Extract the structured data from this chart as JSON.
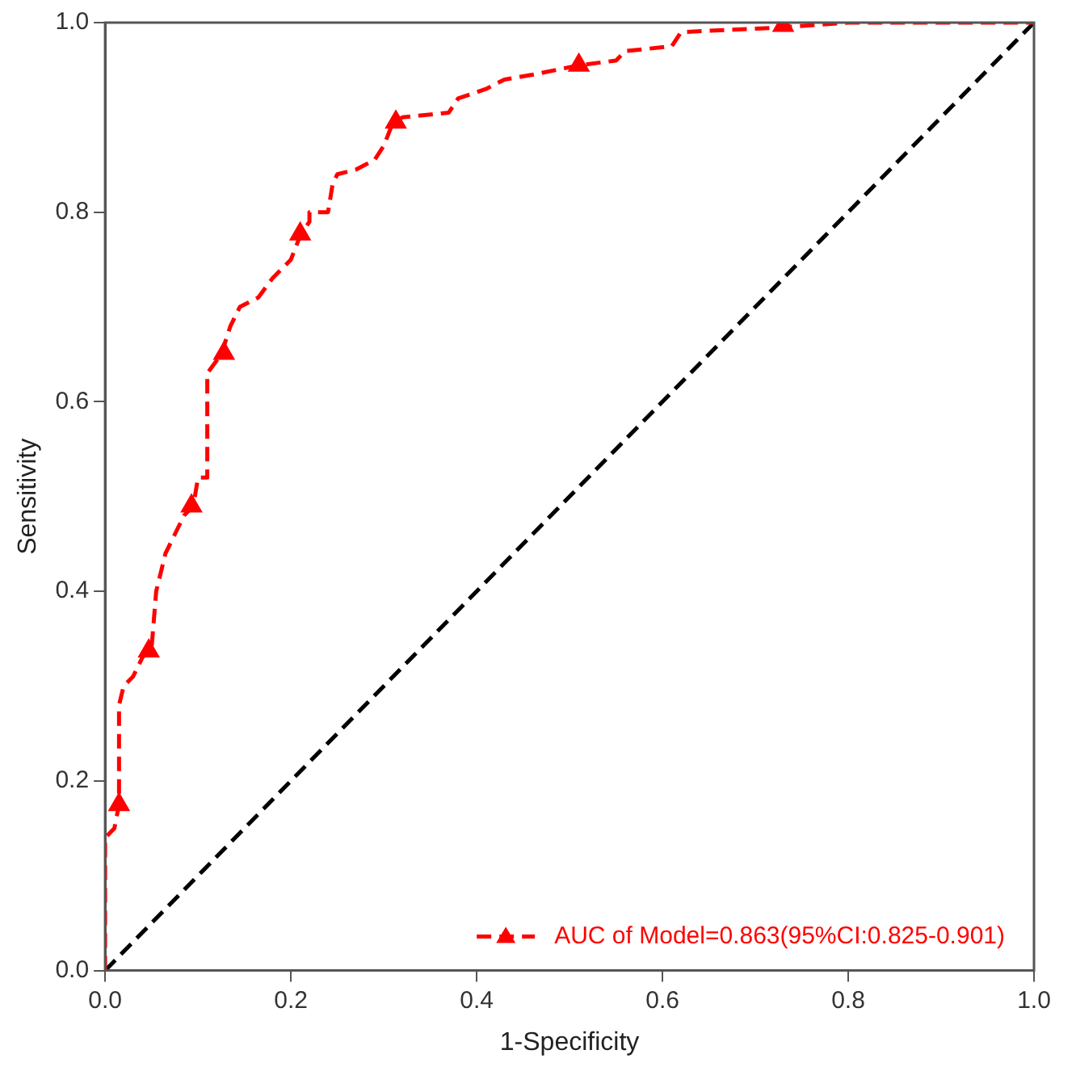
{
  "chart_data": {
    "type": "line",
    "xlabel": "1-Specificity",
    "ylabel": "Sensitivity",
    "xlim": [
      0,
      1
    ],
    "ylim": [
      0,
      1
    ],
    "xticks": [
      {
        "value": 0,
        "label": "0.0"
      },
      0.2,
      0.4,
      0.6,
      0.8,
      {
        "value": 1,
        "label": "1.0"
      }
    ],
    "yticks": [
      {
        "value": 0,
        "label": "0.0"
      },
      0.2,
      0.4,
      0.6,
      0.8,
      {
        "value": 1,
        "label": "1.0"
      }
    ],
    "grid": false,
    "legend": "bottom right",
    "series": [
      {
        "name": "AUC of Model=0.863(95%CI:0.825-0.901)",
        "color": "#ff0000",
        "line_style": "dashed",
        "marker": "none",
        "x": [
          0,
          0,
          0.01,
          0.015,
          0.015,
          0.02,
          0.03,
          0.04,
          0.05,
          0.055,
          0.065,
          0.075,
          0.085,
          0.095,
          0.1,
          0.11,
          0.11,
          0.125,
          0.135,
          0.145,
          0.165,
          0.18,
          0.2,
          0.21,
          0.22,
          0.22,
          0.24,
          0.245,
          0.25,
          0.27,
          0.28,
          0.29,
          0.3,
          0.31,
          0.32,
          0.37,
          0.38,
          0.41,
          0.43,
          0.46,
          0.51,
          0.55,
          0.56,
          0.61,
          0.62,
          0.73,
          0.8,
          1
        ],
        "values": [
          0,
          0.14,
          0.15,
          0.175,
          0.28,
          0.3,
          0.31,
          0.33,
          0.34,
          0.4,
          0.44,
          0.46,
          0.48,
          0.49,
          0.52,
          0.52,
          0.63,
          0.65,
          0.68,
          0.7,
          0.71,
          0.73,
          0.75,
          0.775,
          0.79,
          0.8,
          0.8,
          0.83,
          0.84,
          0.845,
          0.85,
          0.855,
          0.87,
          0.895,
          0.9,
          0.905,
          0.92,
          0.93,
          0.94,
          0.945,
          0.955,
          0.96,
          0.97,
          0.975,
          0.99,
          0.995,
          1,
          1
        ]
      },
      {
        "type": "scatter",
        "color": "#ff0000",
        "marker": "triangle",
        "x": [
          0.015,
          0.047,
          0.093,
          0.128,
          0.21,
          0.313,
          0.51,
          0.73
        ],
        "values": [
          0.175,
          0.337,
          0.49,
          0.651,
          0.777,
          0.895,
          0.955,
          0.997
        ]
      },
      {
        "color": "#000000",
        "line_style": "dashed",
        "marker": "none",
        "x": [
          0,
          1
        ],
        "values": [
          0,
          1
        ]
      }
    ]
  }
}
